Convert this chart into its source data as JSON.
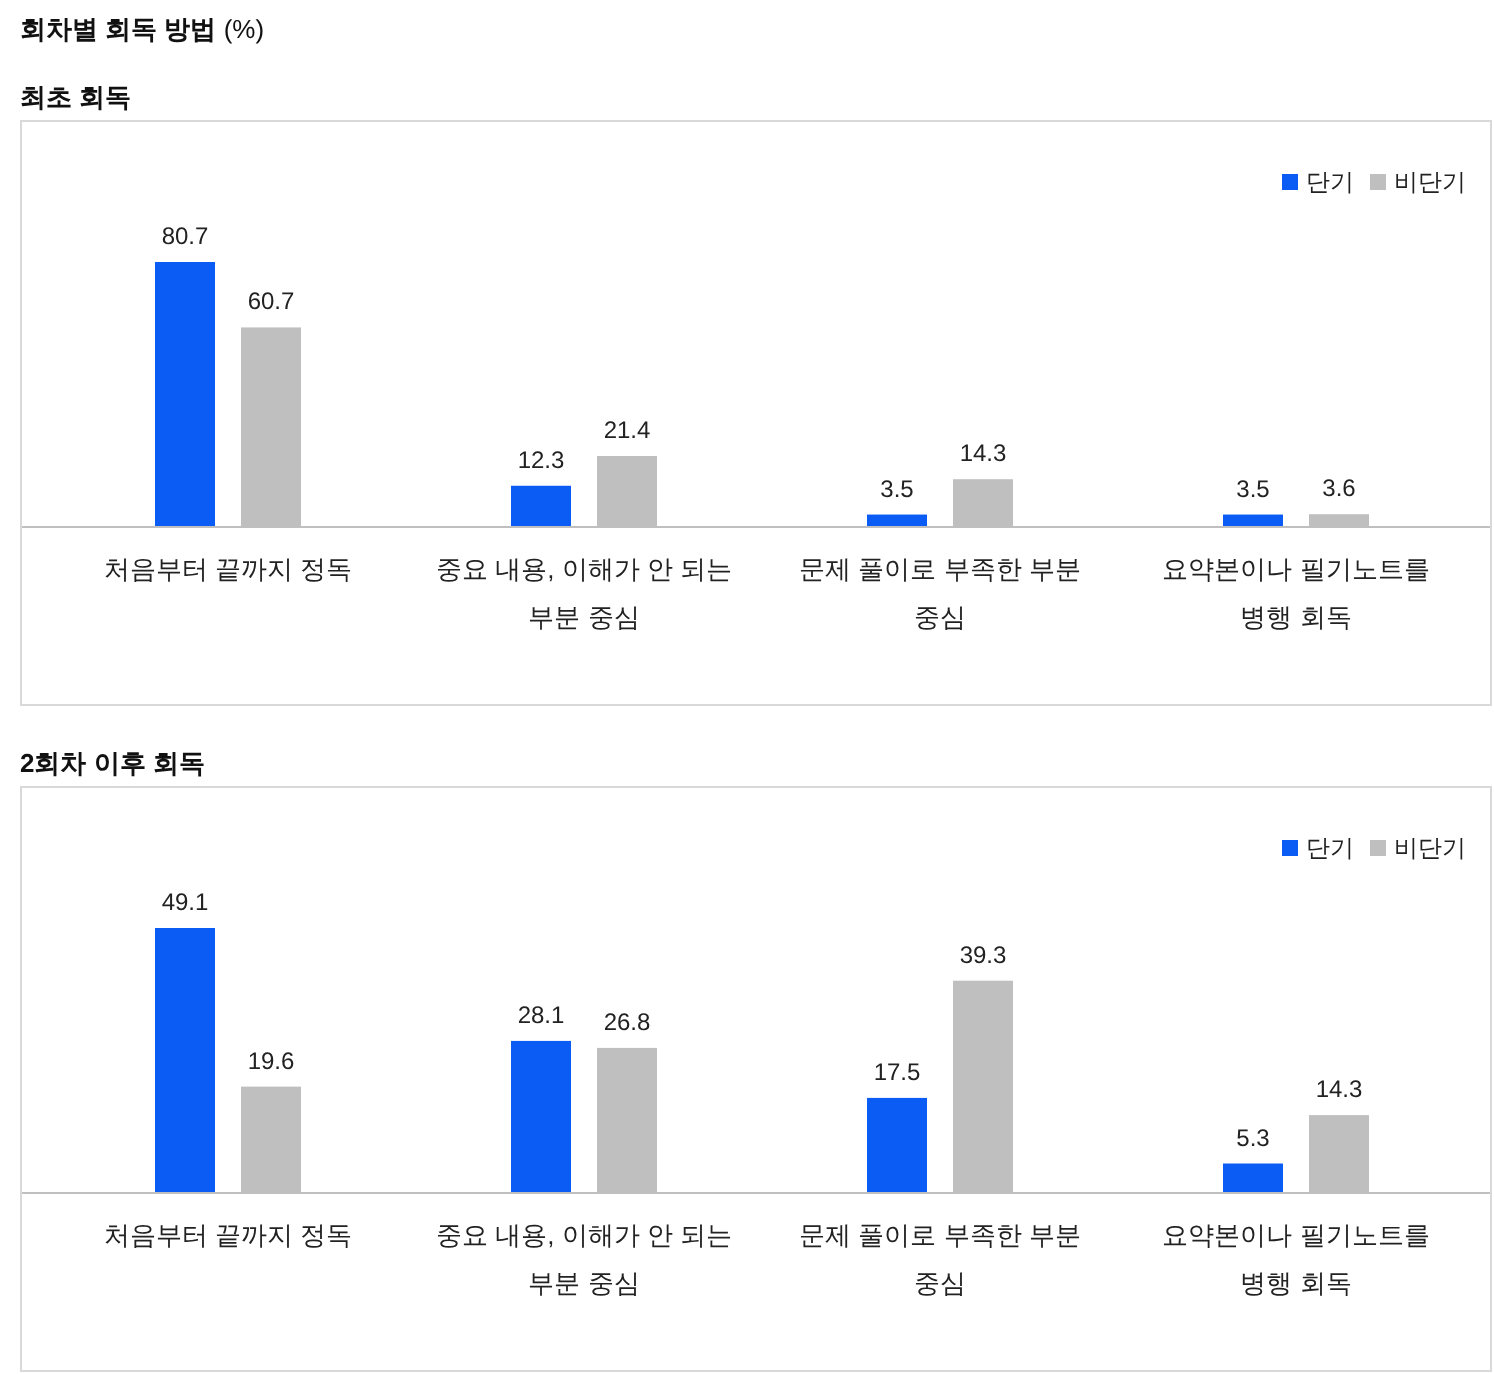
{
  "chart_data": [
    {
      "type": "bar",
      "title": "회차별 회독 방법 (%)",
      "subtitle": "최초 회독",
      "categories": [
        "처음부터 끝까지 정독",
        "중요 내용, 이해가 안 되는 부분 중심",
        "문제 풀이로 부족한 부분 중심",
        "요약본이나 필기노트를 병행 회독"
      ],
      "series": [
        {
          "name": "단기",
          "color": "#0a5cf5",
          "values": [
            80.7,
            12.3,
            3.5,
            3.5
          ]
        },
        {
          "name": "비단기",
          "color": "#bfbfbf",
          "values": [
            60.7,
            21.4,
            14.3,
            3.6
          ]
        }
      ],
      "data_labels": true,
      "legend": "top right"
    },
    {
      "type": "bar",
      "title": "2회차 이후  회독",
      "categories": [
        "처음부터 끝까지 정독",
        "중요 내용, 이해가 안 되는 부분 중심",
        "문제 풀이로 부족한 부분 중심",
        "요약본이나 필기노트를 병행 회독"
      ],
      "series": [
        {
          "name": "단기",
          "color": "#0a5cf5",
          "values": [
            49.1,
            28.1,
            17.5,
            5.3
          ]
        },
        {
          "name": "비단기",
          "color": "#bfbfbf",
          "values": [
            19.6,
            26.8,
            39.3,
            14.3
          ]
        }
      ],
      "data_labels": true,
      "legend": "top right"
    }
  ]
}
